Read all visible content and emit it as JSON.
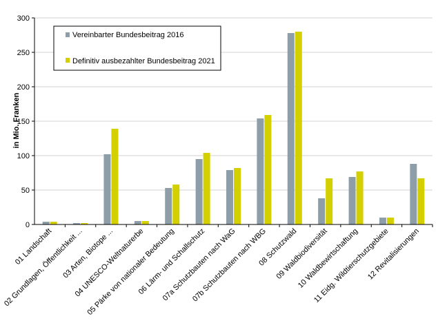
{
  "chart_data": {
    "type": "bar",
    "ylabel": "in Mio. Franken",
    "ylim": [
      0,
      300
    ],
    "yticks": [
      0,
      50,
      100,
      150,
      200,
      250,
      300
    ],
    "grid": true,
    "legend_position": "top-left",
    "categories": [
      "01 Landschaft",
      "02 Grundlagen, Öffentlichkeit ...",
      "03 Arten, Biotope ...",
      "04 UNESCO-Weltnaturerbe",
      "05 Pärke von nationaler Bedeutung",
      "06 Lärm- und Schallschutz",
      "07a Schutzbauten nach WaG",
      "07b Schutzbauten nach WBG",
      "08 Schutzwald",
      "09 Waldbiodiversität",
      "10 Waldbewirtschaftung",
      "11 Eidg. Wildtierschutzgebiete",
      "12 Revitalisierungen"
    ],
    "series": [
      {
        "name": "Vereinbarter Bundesbeitrag 2016",
        "color": "#8e9ea8",
        "values": [
          4,
          2,
          102,
          5,
          53,
          95,
          79,
          154,
          278,
          38,
          69,
          10,
          88
        ]
      },
      {
        "name": "Definitiv ausbezahlter Bundesbeitrag 2021",
        "color": "#d4d000",
        "values": [
          4,
          2,
          139,
          5,
          58,
          104,
          82,
          159,
          280,
          67,
          77,
          10,
          67
        ]
      }
    ]
  }
}
